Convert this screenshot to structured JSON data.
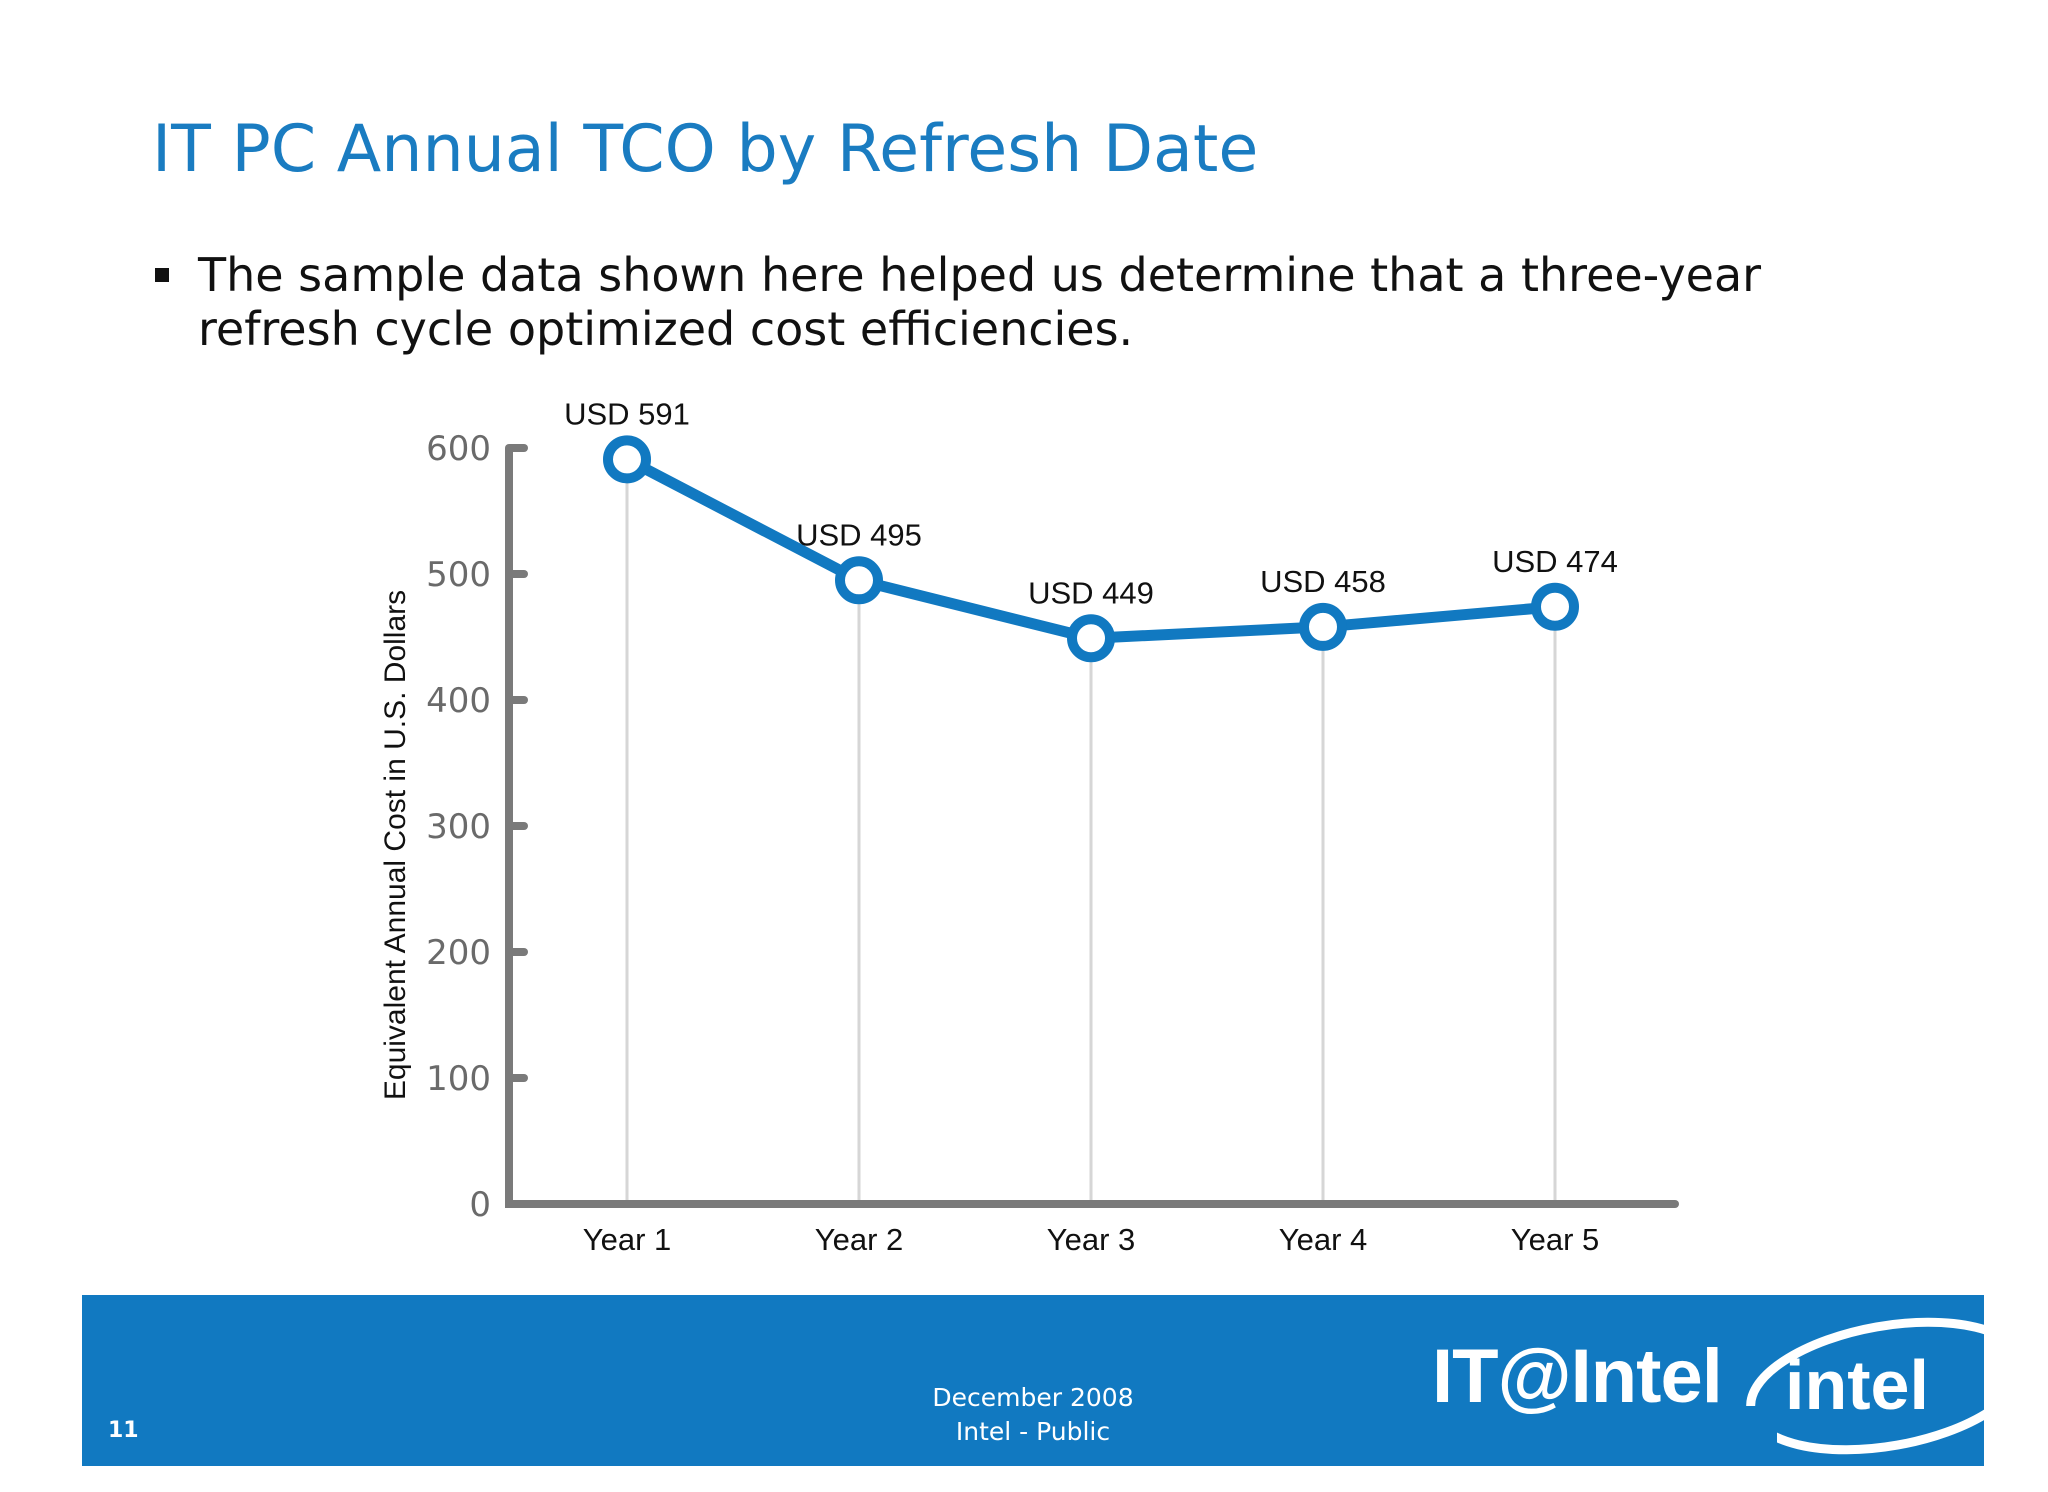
{
  "slide": {
    "title": "IT PC Annual TCO by Refresh Date",
    "bullet": "The sample data shown here helped us determine that a three-year refresh cycle optimized cost efficiencies."
  },
  "chart_data": {
    "type": "line",
    "categories": [
      "Year 1",
      "Year 2",
      "Year 3",
      "Year 4",
      "Year 5"
    ],
    "series": [
      {
        "values": [
          591,
          495,
          449,
          458,
          474
        ]
      }
    ],
    "data_labels": [
      "USD 591",
      "USD 495",
      "USD 449",
      "USD 458",
      "USD 474"
    ],
    "ylabel": "Equivalent Annual Cost in U.S. Dollars",
    "xlabel": "",
    "ylim": [
      0,
      600
    ],
    "yticks": [
      0,
      100,
      200,
      300,
      400,
      500,
      600
    ],
    "grid": "vertical lines at categories",
    "colors": {
      "line": "#1179c1",
      "axis": "#7a7a7a",
      "grid": "#d6d6d6"
    }
  },
  "footer": {
    "page_number": "11",
    "date": "December 2008",
    "classification": "Intel - Public",
    "logo_text": "IT@Intel",
    "brand_text": "intel",
    "background": "#1179c1"
  }
}
